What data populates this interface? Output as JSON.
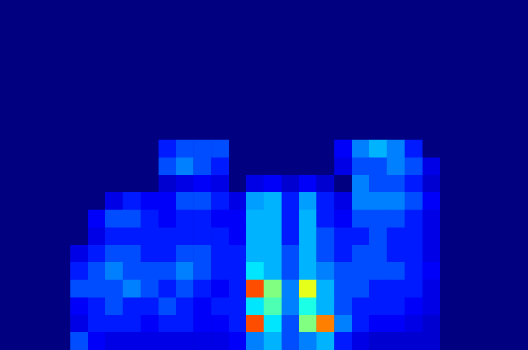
{
  "chart_data": {
    "type": "heatmap",
    "tick_labels": false,
    "zlim": [
      0,
      1
    ],
    "z": [
      [
        0,
        0,
        0,
        0,
        0,
        0,
        0,
        0,
        0,
        0,
        0,
        0,
        0,
        0,
        0,
        0,
        0,
        0,
        0,
        0,
        0,
        0,
        0,
        0,
        0,
        0,
        0,
        0,
        0,
        0
      ],
      [
        0,
        0,
        0,
        0,
        0,
        0,
        0,
        0,
        0,
        0,
        0,
        0,
        0,
        0,
        0,
        0,
        0,
        0,
        0,
        0,
        0,
        0,
        0,
        0,
        0,
        0,
        0,
        0,
        0,
        0
      ],
      [
        0,
        0,
        0,
        0,
        0,
        0,
        0,
        0,
        0,
        0,
        0,
        0,
        0,
        0,
        0,
        0,
        0,
        0,
        0,
        0,
        0,
        0,
        0,
        0,
        0,
        0,
        0,
        0,
        0,
        0
      ],
      [
        0,
        0,
        0,
        0,
        0,
        0,
        0,
        0,
        0,
        0,
        0,
        0,
        0,
        0,
        0,
        0,
        0,
        0,
        0,
        0,
        0,
        0,
        0,
        0,
        0,
        0,
        0,
        0,
        0,
        0
      ],
      [
        0,
        0,
        0,
        0,
        0,
        0,
        0,
        0,
        0,
        0,
        0,
        0,
        0,
        0,
        0,
        0,
        0,
        0,
        0,
        0,
        0,
        0,
        0,
        0,
        0,
        0,
        0,
        0,
        0,
        0
      ],
      [
        0,
        0,
        0,
        0,
        0,
        0,
        0,
        0,
        0,
        0,
        0,
        0,
        0,
        0,
        0,
        0,
        0,
        0,
        0,
        0,
        0,
        0,
        0,
        0,
        0,
        0,
        0,
        0,
        0,
        0
      ],
      [
        0,
        0,
        0,
        0,
        0,
        0,
        0,
        0,
        0,
        0,
        0,
        0,
        0,
        0,
        0,
        0,
        0,
        0,
        0,
        0,
        0,
        0,
        0,
        0,
        0,
        0,
        0,
        0,
        0,
        0
      ],
      [
        0,
        0,
        0,
        0,
        0,
        0,
        0,
        0,
        0,
        0,
        0,
        0,
        0,
        0,
        0,
        0,
        0,
        0,
        0,
        0,
        0,
        0,
        0,
        0,
        0,
        0,
        0,
        0,
        0,
        0
      ],
      [
        0,
        0,
        0,
        0,
        0,
        0,
        0,
        0,
        0,
        0.15,
        0.2,
        0.2,
        0.2,
        0,
        0,
        0,
        0,
        0,
        0,
        0.12,
        0.25,
        0.3,
        0.25,
        0.15,
        0,
        0,
        0,
        0,
        0,
        0
      ],
      [
        0,
        0,
        0,
        0,
        0,
        0,
        0,
        0,
        0,
        0.2,
        0.25,
        0.2,
        0.15,
        0,
        0,
        0,
        0,
        0,
        0,
        0.1,
        0.2,
        0.2,
        0.25,
        0.2,
        0.1,
        0,
        0,
        0,
        0,
        0
      ],
      [
        0,
        0,
        0,
        0,
        0,
        0,
        0,
        0,
        0,
        0.08,
        0.1,
        0.12,
        0.1,
        0,
        0.1,
        0.12,
        0.08,
        0.12,
        0.08,
        0,
        0.25,
        0.2,
        0.2,
        0.15,
        0.08,
        0,
        0,
        0,
        0,
        0
      ],
      [
        0,
        0,
        0,
        0,
        0,
        0,
        0.1,
        0.15,
        0.12,
        0.12,
        0.2,
        0.2,
        0.15,
        0.1,
        0.28,
        0.3,
        0.15,
        0.28,
        0.15,
        0.1,
        0.25,
        0.25,
        0.25,
        0.2,
        0.12,
        0,
        0,
        0,
        0,
        0
      ],
      [
        0,
        0,
        0,
        0,
        0,
        0.12,
        0.2,
        0.2,
        0.15,
        0.12,
        0.15,
        0.15,
        0.12,
        0.12,
        0.3,
        0.3,
        0.15,
        0.3,
        0.15,
        0.12,
        0.2,
        0.2,
        0.2,
        0.15,
        0.1,
        0,
        0,
        0,
        0,
        0
      ],
      [
        0,
        0,
        0,
        0,
        0,
        0.1,
        0.15,
        0.15,
        0.15,
        0.15,
        0.15,
        0.15,
        0.15,
        0.12,
        0.3,
        0.3,
        0.15,
        0.3,
        0.2,
        0.15,
        0.15,
        0.2,
        0.15,
        0.15,
        0.1,
        0,
        0,
        0,
        0,
        0
      ],
      [
        0,
        0,
        0,
        0,
        0.1,
        0.15,
        0.2,
        0.2,
        0.15,
        0.15,
        0.2,
        0.2,
        0.15,
        0.15,
        0.3,
        0.3,
        0.2,
        0.3,
        0.2,
        0.15,
        0.2,
        0.2,
        0.15,
        0.15,
        0.1,
        0,
        0,
        0,
        0,
        0
      ],
      [
        0,
        0,
        0,
        0,
        0.15,
        0.2,
        0.25,
        0.2,
        0.2,
        0.2,
        0.25,
        0.2,
        0.15,
        0.15,
        0.35,
        0.3,
        0.2,
        0.3,
        0.25,
        0.2,
        0.2,
        0.2,
        0.2,
        0.15,
        0.12,
        0,
        0,
        0,
        0,
        0
      ],
      [
        0,
        0,
        0,
        0,
        0.2,
        0.2,
        0.2,
        0.25,
        0.2,
        0.15,
        0.2,
        0.15,
        0.12,
        0.15,
        0.8,
        0.5,
        0.25,
        0.6,
        0.3,
        0.2,
        0.2,
        0.15,
        0.15,
        0.15,
        0.1,
        0,
        0,
        0,
        0,
        0
      ],
      [
        0,
        0,
        0,
        0,
        0.12,
        0.15,
        0.2,
        0.15,
        0.15,
        0.2,
        0.15,
        0.12,
        0.15,
        0.15,
        0.35,
        0.45,
        0.25,
        0.4,
        0.3,
        0.2,
        0.15,
        0.15,
        0.15,
        0.12,
        0.1,
        0,
        0,
        0,
        0,
        0
      ],
      [
        0,
        0,
        0,
        0,
        0.1,
        0.15,
        0.15,
        0.15,
        0.12,
        0.15,
        0.15,
        0.12,
        0.12,
        0.15,
        0.8,
        0.35,
        0.2,
        0.5,
        0.75,
        0.25,
        0.15,
        0.12,
        0.12,
        0.1,
        0.08,
        0,
        0,
        0,
        0,
        0
      ],
      [
        0,
        0,
        0,
        0,
        0.2,
        0.12,
        0.1,
        0.1,
        0.1,
        0.1,
        0.1,
        0.1,
        0.1,
        0.12,
        0.25,
        0.3,
        0.2,
        0.25,
        0.3,
        0.15,
        0.1,
        0.08,
        0.08,
        0.08,
        0.08,
        0,
        0,
        0,
        0,
        0
      ]
    ]
  }
}
